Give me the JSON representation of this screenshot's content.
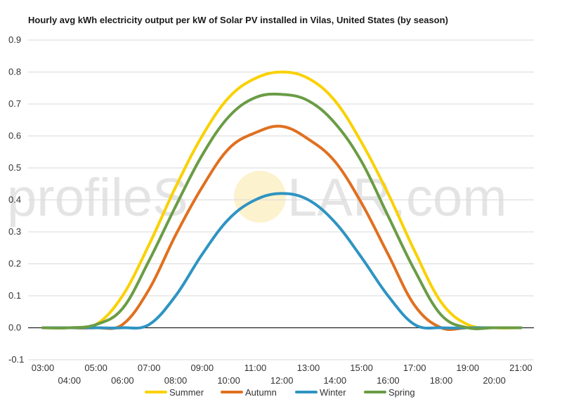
{
  "chart_data": {
    "type": "line",
    "title": "Hourly avg kWh electricity output per kW of Solar PV installed in Vilas, United States (by season)",
    "xlabel": "",
    "ylabel": "",
    "ylim": [
      -0.1,
      0.9
    ],
    "yticks": [
      "-0.1",
      "0.0",
      "0.1",
      "0.2",
      "0.3",
      "0.4",
      "0.5",
      "0.6",
      "0.7",
      "0.8",
      "0.9"
    ],
    "x": [
      "03:00",
      "04:00",
      "05:00",
      "06:00",
      "07:00",
      "08:00",
      "09:00",
      "10:00",
      "11:00",
      "12:00",
      "13:00",
      "14:00",
      "15:00",
      "16:00",
      "17:00",
      "18:00",
      "19:00",
      "20:00",
      "21:00"
    ],
    "grid": true,
    "legend_position": "bottom",
    "series": [
      {
        "name": "Summer",
        "color": "#f9d100",
        "values": [
          0,
          0,
          0.01,
          0.1,
          0.26,
          0.44,
          0.6,
          0.72,
          0.78,
          0.8,
          0.78,
          0.71,
          0.58,
          0.42,
          0.24,
          0.08,
          0.01,
          0,
          0
        ]
      },
      {
        "name": "Autumn",
        "color": "#e07020",
        "values": [
          0,
          0,
          0,
          0.01,
          0.12,
          0.29,
          0.44,
          0.56,
          0.61,
          0.63,
          0.59,
          0.52,
          0.39,
          0.23,
          0.07,
          0,
          0,
          0,
          0
        ]
      },
      {
        "name": "Winter",
        "color": "#2e94c2",
        "values": [
          0,
          0,
          0,
          0,
          0.01,
          0.1,
          0.23,
          0.34,
          0.4,
          0.42,
          0.4,
          0.33,
          0.22,
          0.1,
          0.01,
          0,
          0,
          0,
          0
        ]
      },
      {
        "name": "Spring",
        "color": "#6a9c45",
        "values": [
          0,
          0,
          0.01,
          0.06,
          0.21,
          0.38,
          0.54,
          0.66,
          0.72,
          0.73,
          0.71,
          0.64,
          0.52,
          0.35,
          0.18,
          0.04,
          0,
          0,
          0
        ]
      }
    ]
  },
  "watermark": {
    "text_left": "profileS",
    "text_right": "LAR.com"
  }
}
